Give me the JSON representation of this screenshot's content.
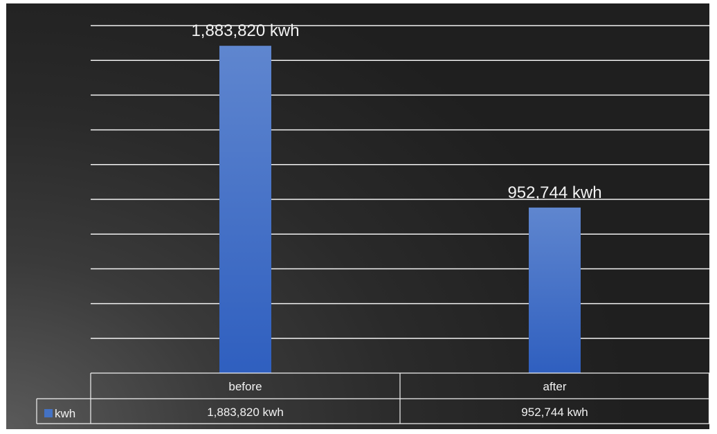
{
  "chart_data": {
    "type": "bar",
    "categories": [
      "before",
      "after"
    ],
    "series": [
      {
        "name": "kwh",
        "values": [
          1883820,
          952744
        ],
        "data_labels": [
          "1,883,820 kwh",
          "952,744 kwh"
        ],
        "color": "#4472c4"
      }
    ],
    "title": "",
    "xlabel": "",
    "ylabel": "",
    "ylim": [
      0,
      2000000
    ],
    "grid": true,
    "legend": "data-table",
    "data_table": {
      "legend_key": "kwh",
      "rows": [
        [
          "1,883,820 kwh",
          "952,744 kwh"
        ]
      ]
    }
  },
  "colors": {
    "bar_top": "#5f86cf",
    "bar_bottom": "#2f5fbf",
    "gridline": "#f2f2f2",
    "text": "#f2f2f2",
    "background_dark": "#1f1f1f",
    "background_light": "#5a5a5a"
  }
}
